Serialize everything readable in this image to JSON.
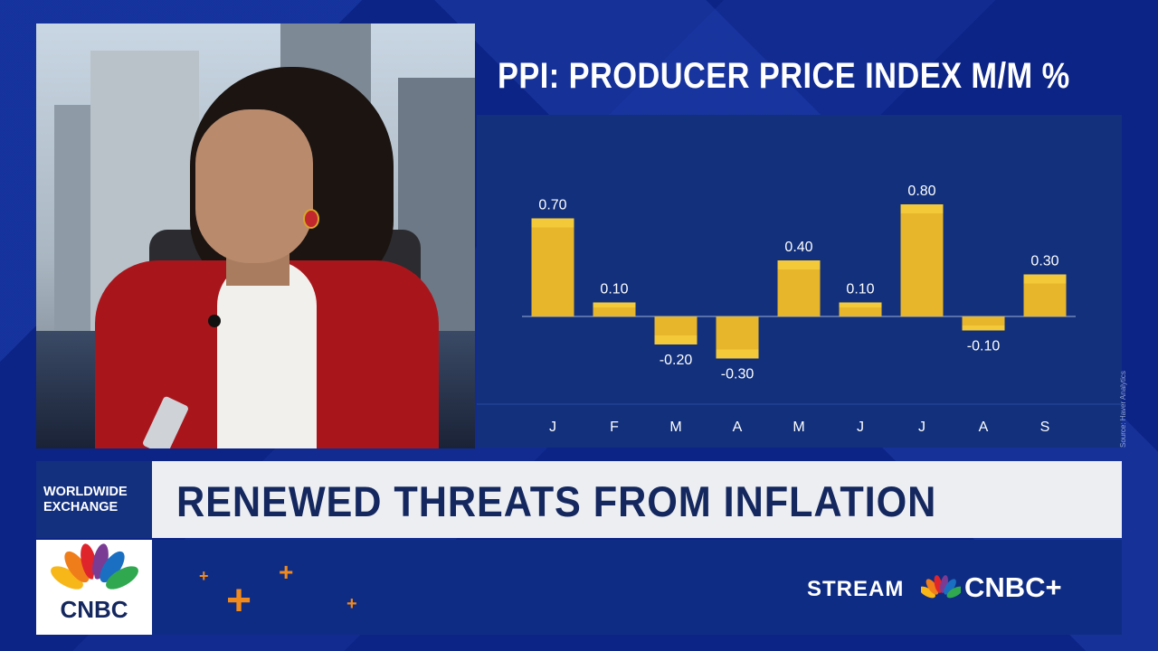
{
  "chart_data": {
    "type": "bar",
    "title": "PPI: PRODUCER PRICE INDEX M/M %",
    "categories": [
      "J",
      "F",
      "M",
      "A",
      "M",
      "J",
      "J",
      "A",
      "S"
    ],
    "values": [
      0.7,
      0.1,
      -0.2,
      -0.3,
      0.4,
      0.1,
      0.8,
      -0.1,
      0.3
    ],
    "labels": [
      "0.70",
      "0.10",
      "-0.20",
      "-0.30",
      "0.40",
      "0.10",
      "0.80",
      "-0.10",
      "0.30"
    ],
    "ylim": [
      -0.45,
      1.05
    ],
    "xlabel": "",
    "ylabel": "",
    "grid": false,
    "bar_color": "#e8b62a",
    "bar_top_color": "#f3c93a",
    "source": "Source: Haver Analytics"
  },
  "lower_third": {
    "tag_line1": "WORLDWIDE",
    "tag_line2": "EXCHANGE",
    "headline": "RENEWED THREATS FROM INFLATION"
  },
  "branding": {
    "logo_text": "CNBC",
    "stream_label": "STREAM",
    "service": "CNBC+",
    "accent": "#f08a1d"
  }
}
